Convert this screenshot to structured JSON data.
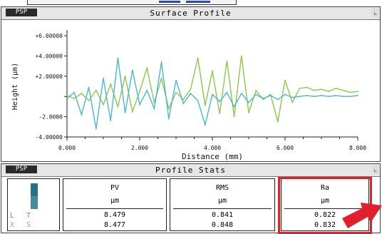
{
  "plot_panel": {
    "tag": "PSP",
    "title": "Surface Profile",
    "corner": "⌞"
  },
  "stats_panel": {
    "tag": "PSP",
    "title": "Profile Stats",
    "corner": "⌞"
  },
  "legend": {
    "row1_label": "L",
    "row1_value": "T",
    "row2_label": "X",
    "row2_value": "S"
  },
  "stats": [
    {
      "name": "PV",
      "unit": "µm",
      "v1": "8.479",
      "v2": "8.477"
    },
    {
      "name": "RMS",
      "unit": "µm",
      "v1": "0.841",
      "v2": "0.848"
    },
    {
      "name": "Ra",
      "unit": "µm",
      "v1": "0.822",
      "v2": "0.832"
    }
  ],
  "colors": {
    "series_green": "#8cc84a",
    "series_cyan": "#48b8d0",
    "highlight_red": "#e0202a"
  },
  "chart_data": {
    "type": "line",
    "title": "",
    "xlabel": "Distance (mm)",
    "ylabel": "Height (µm)",
    "xlim": [
      0.0,
      8.0
    ],
    "ylim": [
      -4.0,
      6.0
    ],
    "x_ticks": [
      "0.000",
      "2.000",
      "4.000",
      "6.000",
      "8.000"
    ],
    "y_ticks": [
      "+6.00000",
      "+4.00000",
      "+2.00000",
      "-2.0000",
      "-4.00000"
    ],
    "series": [
      {
        "name": "L",
        "color": "#8cc84a",
        "x": [
          0.0,
          0.2,
          0.4,
          0.6,
          0.8,
          1.0,
          1.2,
          1.4,
          1.6,
          1.8,
          2.0,
          2.2,
          2.4,
          2.6,
          2.8,
          3.0,
          3.2,
          3.4,
          3.6,
          3.8,
          4.0,
          4.2,
          4.4,
          4.6,
          4.8,
          5.0,
          5.2,
          5.4,
          5.6,
          5.8,
          6.0,
          6.2,
          6.4,
          6.6,
          6.8,
          7.0,
          7.2,
          7.4,
          7.6,
          7.8,
          8.0
        ],
        "y": [
          0.1,
          -0.2,
          0.3,
          -0.4,
          0.6,
          -0.8,
          1.2,
          -1.0,
          2.0,
          -1.5,
          0.5,
          2.8,
          -0.6,
          1.8,
          -1.2,
          0.4,
          -0.3,
          0.7,
          3.8,
          -0.9,
          2.5,
          -1.7,
          3.5,
          -2.0,
          4.0,
          -1.6,
          0.6,
          -0.3,
          0.2,
          -2.5,
          1.6,
          -0.6,
          0.8,
          0.9,
          0.6,
          0.7,
          0.5,
          0.8,
          0.6,
          0.4,
          0.5
        ]
      },
      {
        "name": "X",
        "color": "#48b8d0",
        "x": [
          0.0,
          0.2,
          0.4,
          0.6,
          0.8,
          1.0,
          1.2,
          1.4,
          1.6,
          1.8,
          2.0,
          2.2,
          2.4,
          2.6,
          2.8,
          3.0,
          3.2,
          3.4,
          3.6,
          3.8,
          4.0,
          4.2,
          4.4,
          4.6,
          4.8,
          5.0,
          5.2,
          5.4,
          5.6,
          5.8,
          6.0,
          6.2,
          6.4,
          6.6,
          6.8,
          7.0,
          7.2,
          7.4,
          7.6,
          7.8,
          8.0
        ],
        "y": [
          -0.2,
          0.4,
          -1.8,
          0.9,
          -3.2,
          1.8,
          -2.4,
          3.8,
          -1.6,
          2.6,
          -0.8,
          0.6,
          -1.2,
          3.4,
          -2.2,
          1.6,
          -0.7,
          0.3,
          -0.4,
          -2.8,
          0.2,
          -0.5,
          0.4,
          -1.0,
          0.3,
          -0.6,
          0.2,
          -0.2,
          0.1,
          -0.3,
          0.2,
          -0.1,
          0.0,
          0.1,
          0.0,
          0.1,
          0.0,
          0.1,
          0.0,
          0.0,
          0.1
        ]
      }
    ],
    "grid": false
  }
}
